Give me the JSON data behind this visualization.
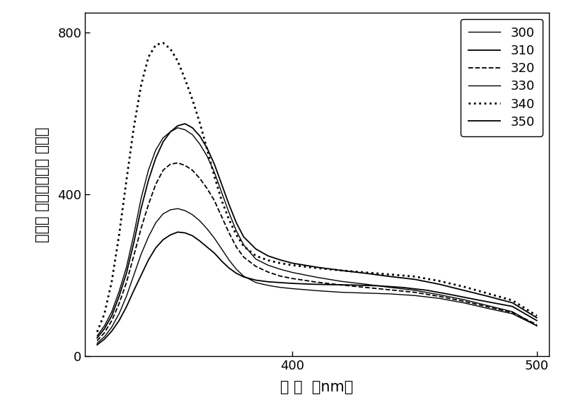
{
  "title": "",
  "xlabel": "波 长  （nm）",
  "ylabel": "光致发 光强度（原子 单位）",
  "xlim": [
    315,
    505
  ],
  "ylim": [
    0,
    850
  ],
  "xticks": [
    400,
    500
  ],
  "yticks": [
    0,
    400,
    800
  ],
  "series": [
    {
      "label": "300",
      "linestyle": "solid",
      "linewidth": 1.0,
      "color": "#000000",
      "x": [
        320,
        323,
        326,
        329,
        332,
        335,
        338,
        341,
        344,
        347,
        350,
        353,
        356,
        359,
        362,
        365,
        368,
        371,
        374,
        377,
        380,
        385,
        390,
        395,
        400,
        410,
        420,
        430,
        440,
        450,
        460,
        470,
        480,
        490,
        500
      ],
      "y": [
        50,
        75,
        110,
        160,
        220,
        300,
        390,
        460,
        510,
        540,
        555,
        565,
        560,
        548,
        525,
        495,
        455,
        405,
        355,
        310,
        275,
        240,
        225,
        215,
        207,
        195,
        185,
        178,
        170,
        163,
        152,
        140,
        125,
        110,
        75
      ]
    },
    {
      "label": "310",
      "linestyle": "solid",
      "linewidth": 1.3,
      "color": "#000000",
      "x": [
        320,
        323,
        326,
        329,
        332,
        335,
        338,
        341,
        344,
        347,
        350,
        353,
        356,
        359,
        362,
        365,
        368,
        371,
        374,
        377,
        380,
        385,
        390,
        395,
        400,
        410,
        420,
        430,
        440,
        450,
        460,
        470,
        480,
        490,
        500
      ],
      "y": [
        45,
        68,
        100,
        148,
        205,
        280,
        365,
        435,
        490,
        530,
        555,
        570,
        575,
        565,
        545,
        515,
        475,
        425,
        375,
        330,
        295,
        265,
        248,
        238,
        230,
        220,
        212,
        205,
        197,
        190,
        178,
        163,
        148,
        132,
        95
      ]
    },
    {
      "label": "320",
      "linestyle": "dashed",
      "linewidth": 1.3,
      "color": "#000000",
      "x": [
        320,
        323,
        326,
        329,
        332,
        335,
        338,
        341,
        344,
        347,
        350,
        353,
        356,
        359,
        362,
        365,
        368,
        371,
        374,
        377,
        380,
        385,
        390,
        395,
        400,
        410,
        420,
        430,
        440,
        450,
        460,
        470,
        480,
        490,
        500
      ],
      "y": [
        38,
        58,
        88,
        130,
        182,
        248,
        316,
        375,
        425,
        460,
        475,
        478,
        472,
        460,
        440,
        415,
        385,
        345,
        305,
        270,
        245,
        222,
        208,
        198,
        192,
        183,
        176,
        170,
        164,
        158,
        148,
        136,
        122,
        108,
        78
      ]
    },
    {
      "label": "330",
      "linestyle": "solid",
      "linewidth": 1.0,
      "color": "#000000",
      "x": [
        320,
        323,
        326,
        329,
        332,
        335,
        338,
        341,
        344,
        347,
        350,
        353,
        356,
        359,
        362,
        365,
        368,
        371,
        374,
        377,
        380,
        385,
        390,
        395,
        400,
        410,
        420,
        430,
        440,
        450,
        460,
        470,
        480,
        490,
        500
      ],
      "y": [
        32,
        48,
        72,
        105,
        148,
        200,
        252,
        295,
        330,
        352,
        362,
        365,
        360,
        350,
        335,
        315,
        292,
        265,
        238,
        215,
        198,
        182,
        175,
        170,
        167,
        162,
        158,
        156,
        154,
        150,
        143,
        132,
        118,
        105,
        75
      ]
    },
    {
      "label": "340",
      "linestyle": "dotted",
      "linewidth": 2.0,
      "color": "#000000",
      "x": [
        320,
        323,
        326,
        329,
        332,
        335,
        338,
        341,
        344,
        347,
        350,
        353,
        356,
        359,
        362,
        365,
        368,
        371,
        374,
        377,
        380,
        385,
        390,
        395,
        400,
        410,
        420,
        430,
        440,
        450,
        460,
        470,
        480,
        490,
        500
      ],
      "y": [
        60,
        105,
        185,
        300,
        435,
        565,
        670,
        740,
        770,
        775,
        760,
        730,
        685,
        635,
        578,
        512,
        445,
        385,
        338,
        300,
        272,
        248,
        237,
        230,
        225,
        218,
        212,
        207,
        202,
        197,
        186,
        172,
        155,
        138,
        100
      ]
    },
    {
      "label": "350",
      "linestyle": "solid",
      "linewidth": 1.3,
      "color": "#000000",
      "x": [
        320,
        323,
        326,
        329,
        332,
        335,
        338,
        341,
        344,
        347,
        350,
        353,
        356,
        359,
        362,
        365,
        368,
        371,
        374,
        377,
        380,
        385,
        390,
        395,
        400,
        408,
        415,
        425,
        435,
        445,
        455,
        465,
        475,
        490,
        500
      ],
      "y": [
        28,
        42,
        62,
        88,
        122,
        162,
        200,
        238,
        268,
        288,
        300,
        307,
        305,
        298,
        285,
        270,
        255,
        235,
        218,
        205,
        196,
        188,
        184,
        182,
        180,
        178,
        177,
        176,
        174,
        170,
        163,
        152,
        140,
        123,
        88
      ]
    }
  ],
  "background_color": "#ffffff",
  "label_fontsize": 15,
  "tick_fontsize": 13,
  "legend_fontsize": 13
}
